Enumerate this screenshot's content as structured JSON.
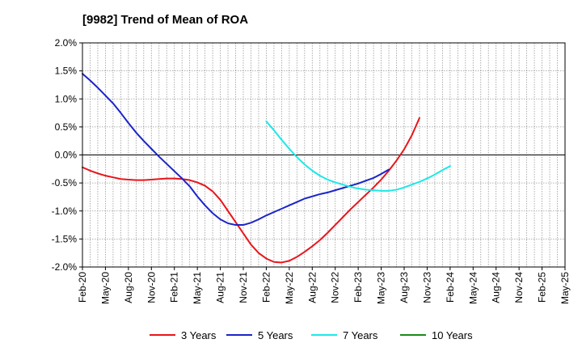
{
  "chart_data": {
    "type": "line",
    "title": "[9982]  Trend of Mean of ROA",
    "xlabel": "",
    "ylabel": "",
    "x_tick_labels": [
      "Feb-20",
      "May-20",
      "Aug-20",
      "Nov-20",
      "Feb-21",
      "May-21",
      "Aug-21",
      "Nov-21",
      "Feb-22",
      "May-22",
      "Aug-22",
      "Nov-22",
      "Feb-23",
      "May-23",
      "Aug-23",
      "Nov-23",
      "Feb-24",
      "May-24",
      "Aug-24",
      "Nov-24",
      "Feb-25",
      "May-25"
    ],
    "y_ticks": [
      2.0,
      1.5,
      1.0,
      0.5,
      0.0,
      -0.5,
      -1.0,
      -1.5,
      -2.0
    ],
    "y_tick_labels": [
      "2.0%",
      "1.5%",
      "1.0%",
      "0.5%",
      "0.0%",
      "-0.5%",
      "-1.0%",
      "-1.5%",
      "-2.0%"
    ],
    "ylim": [
      -2.0,
      2.0
    ],
    "grid": true,
    "legend_position": "bottom",
    "series": [
      {
        "name": "3 Years",
        "color": "#e8151b",
        "start_index": 0,
        "values": [
          -0.22,
          -0.28,
          -0.33,
          -0.37,
          -0.4,
          -0.43,
          -0.44,
          -0.45,
          -0.45,
          -0.44,
          -0.43,
          -0.42,
          -0.42,
          -0.43,
          -0.45,
          -0.49,
          -0.55,
          -0.65,
          -0.8,
          -1.0,
          -1.2,
          -1.4,
          -1.6,
          -1.75,
          -1.85,
          -1.91,
          -1.92,
          -1.89,
          -1.82,
          -1.73,
          -1.63,
          -1.52,
          -1.39,
          -1.25,
          -1.11,
          -0.97,
          -0.84,
          -0.71,
          -0.58,
          -0.44,
          -0.28,
          -0.1,
          0.1,
          0.35,
          0.66
        ]
      },
      {
        "name": "5 Years",
        "color": "#1b25c8",
        "start_index": 0,
        "values": [
          1.45,
          1.33,
          1.2,
          1.06,
          0.92,
          0.75,
          0.57,
          0.4,
          0.25,
          0.11,
          -0.03,
          -0.16,
          -0.29,
          -0.42,
          -0.56,
          -0.74,
          -0.9,
          -1.04,
          -1.15,
          -1.22,
          -1.25,
          -1.25,
          -1.21,
          -1.15,
          -1.08,
          -1.02,
          -0.96,
          -0.9,
          -0.84,
          -0.78,
          -0.74,
          -0.7,
          -0.67,
          -0.63,
          -0.59,
          -0.55,
          -0.51,
          -0.46,
          -0.41,
          -0.34,
          -0.26
        ]
      },
      {
        "name": "7 Years",
        "color": "#1de8e8",
        "start_index": 24,
        "values": [
          0.6,
          0.44,
          0.27,
          0.11,
          -0.04,
          -0.17,
          -0.28,
          -0.37,
          -0.44,
          -0.49,
          -0.53,
          -0.57,
          -0.6,
          -0.62,
          -0.63,
          -0.64,
          -0.64,
          -0.62,
          -0.58,
          -0.53,
          -0.48,
          -0.42,
          -0.35,
          -0.27,
          -0.2
        ]
      },
      {
        "name": "10 Years",
        "color": "#1a8a1a",
        "start_index": 0,
        "values": []
      }
    ]
  }
}
